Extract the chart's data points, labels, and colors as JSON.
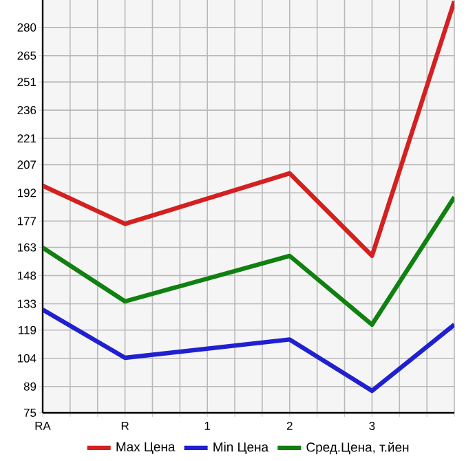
{
  "chart_data": {
    "type": "line",
    "categories": [
      "RA",
      "R",
      "1",
      "2",
      "3",
      null
    ],
    "series": [
      {
        "name": "Max Цена",
        "color": "#d42020",
        "values": [
          195.8,
          175.5,
          null,
          202.4,
          158.5,
          294
        ]
      },
      {
        "name": "Min Цена",
        "color": "#2020d0",
        "values": [
          129.9,
          104.3,
          null,
          114,
          86.7,
          121.9
        ]
      },
      {
        "name": "Сред.Цена, т.йен",
        "color": "#108010",
        "values": [
          162.9,
          134.3,
          null,
          158.5,
          121.9,
          189.7
        ]
      }
    ],
    "ylim": [
      75,
      294.6
    ],
    "yticks": [
      75,
      89,
      104,
      119,
      133,
      148,
      163,
      177,
      192,
      207,
      221,
      236,
      251,
      265,
      280
    ],
    "grid": true,
    "legend": "bottom",
    "marker": "none",
    "line_style": "solid"
  }
}
